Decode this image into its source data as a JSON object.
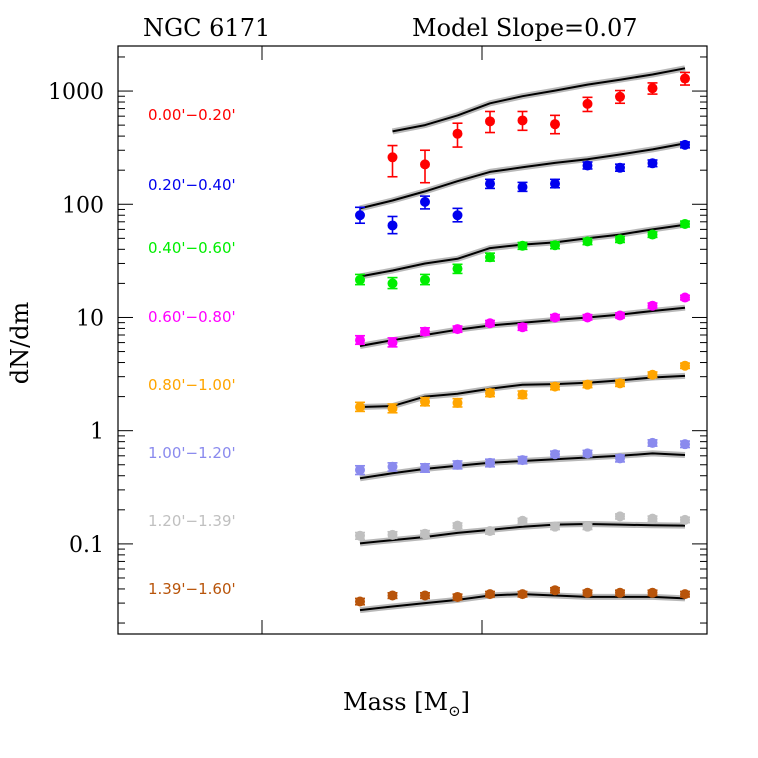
{
  "chart_data": {
    "type": "scatter",
    "title_left": "NGC 6171",
    "title_right": "Model Slope=0.07",
    "xlabel": "Mass [M",
    "xlabel_sub": "⊙",
    "xlabel_close": "]",
    "ylabel": "dN/dm",
    "y_scale": "log",
    "ylim": [
      0.016,
      2500
    ],
    "ytick_labels": [
      "0.1",
      "1",
      "10",
      "100",
      "1000"
    ],
    "ytick_values": [
      0.1,
      1,
      10,
      100,
      1000
    ],
    "x_bins": [
      1,
      2,
      3,
      4,
      5,
      6,
      7,
      8,
      9,
      10,
      11,
      12
    ],
    "grid": false,
    "series": [
      {
        "name": "0.00'−0.20'",
        "color": "#ff0000",
        "points": [
          {
            "x": 2,
            "y": 260,
            "err": [
              175,
              330
            ]
          },
          {
            "x": 3,
            "y": 225,
            "err": [
              155,
              300
            ]
          },
          {
            "x": 4,
            "y": 420,
            "err": [
              320,
              520
            ]
          },
          {
            "x": 5,
            "y": 540,
            "err": [
              430,
              660
            ]
          },
          {
            "x": 6,
            "y": 550,
            "err": [
              450,
              660
            ]
          },
          {
            "x": 7,
            "y": 510,
            "err": [
              420,
              610
            ]
          },
          {
            "x": 8,
            "y": 770,
            "err": [
              660,
              880
            ]
          },
          {
            "x": 9,
            "y": 890,
            "err": [
              780,
              1010
            ]
          },
          {
            "x": 10,
            "y": 1060,
            "err": [
              940,
              1180
            ]
          },
          {
            "x": 11,
            "y": 1290,
            "err": [
              1130,
              1460
            ]
          }
        ],
        "model": [
          [
            2,
            440
          ],
          [
            3,
            500
          ],
          [
            4,
            610
          ],
          [
            5,
            780
          ],
          [
            6,
            900
          ],
          [
            7,
            1010
          ],
          [
            8,
            1140
          ],
          [
            9,
            1260
          ],
          [
            10,
            1400
          ],
          [
            11,
            1590
          ]
        ]
      },
      {
        "name": "0.20'−0.40'",
        "color": "#0000ee",
        "points": [
          {
            "x": 1,
            "y": 80,
            "err": [
              68,
              94
            ]
          },
          {
            "x": 2,
            "y": 65,
            "err": [
              55,
              78
            ]
          },
          {
            "x": 3,
            "y": 105,
            "err": [
              91,
              118
            ]
          },
          {
            "x": 4,
            "y": 80,
            "err": [
              70,
              92
            ]
          },
          {
            "x": 5,
            "y": 152,
            "err": [
              138,
              166
            ]
          },
          {
            "x": 6,
            "y": 142,
            "err": [
              130,
              156
            ]
          },
          {
            "x": 7,
            "y": 152,
            "err": [
              140,
              166
            ]
          },
          {
            "x": 8,
            "y": 220,
            "err": [
              205,
              236
            ]
          },
          {
            "x": 9,
            "y": 210,
            "err": [
              196,
              226
            ]
          },
          {
            "x": 10,
            "y": 230,
            "err": [
              215,
              246
            ]
          },
          {
            "x": 11,
            "y": 335,
            "err": [
              315,
              355
            ]
          }
        ],
        "model": [
          [
            1,
            92
          ],
          [
            2,
            108
          ],
          [
            3,
            130
          ],
          [
            4,
            160
          ],
          [
            5,
            193
          ],
          [
            6,
            212
          ],
          [
            7,
            232
          ],
          [
            8,
            250
          ],
          [
            9,
            275
          ],
          [
            10,
            305
          ],
          [
            11,
            345
          ]
        ]
      },
      {
        "name": "0.40'−0.60'",
        "color": "#00ee00",
        "points": [
          {
            "x": 1,
            "y": 21.5,
            "err": [
              19.5,
              24
            ]
          },
          {
            "x": 2,
            "y": 20,
            "err": [
              18,
              22.5
            ]
          },
          {
            "x": 3,
            "y": 21.5,
            "err": [
              19.5,
              24
            ]
          },
          {
            "x": 4,
            "y": 27,
            "err": [
              24.5,
              29.5
            ]
          },
          {
            "x": 5,
            "y": 34,
            "err": [
              31.5,
              37
            ]
          },
          {
            "x": 6,
            "y": 43,
            "err": [
              40,
              46
            ]
          },
          {
            "x": 7,
            "y": 43.5,
            "err": [
              40.5,
              46.5
            ]
          },
          {
            "x": 8,
            "y": 47,
            "err": [
              44,
              50
            ]
          },
          {
            "x": 9,
            "y": 49,
            "err": [
              46,
              52
            ]
          },
          {
            "x": 10,
            "y": 54,
            "err": [
              51,
              57
            ]
          },
          {
            "x": 11,
            "y": 67,
            "err": [
              63,
              71
            ]
          }
        ],
        "model": [
          [
            1,
            23
          ],
          [
            2,
            26
          ],
          [
            3,
            30
          ],
          [
            4,
            33
          ],
          [
            5,
            41
          ],
          [
            6,
            44
          ],
          [
            7,
            46
          ],
          [
            8,
            50
          ],
          [
            9,
            54
          ],
          [
            10,
            60
          ],
          [
            11,
            66
          ]
        ]
      },
      {
        "name": "0.60'−0.80'",
        "color": "#ff00ff",
        "points": [
          {
            "x": 1,
            "y": 6.3,
            "err": [
              5.8,
              6.9
            ]
          },
          {
            "x": 2,
            "y": 6.0,
            "err": [
              5.5,
              6.6
            ]
          },
          {
            "x": 3,
            "y": 7.5,
            "err": [
              7.0,
              8.1
            ]
          },
          {
            "x": 4,
            "y": 7.9,
            "err": [
              7.4,
              8.4
            ]
          },
          {
            "x": 5,
            "y": 8.9,
            "err": [
              8.4,
              9.4
            ]
          },
          {
            "x": 6,
            "y": 8.2,
            "err": [
              7.7,
              8.8
            ]
          },
          {
            "x": 7,
            "y": 10,
            "err": [
              9.5,
              10.6
            ]
          },
          {
            "x": 8,
            "y": 10,
            "err": [
              9.5,
              10.6
            ]
          },
          {
            "x": 9,
            "y": 10.4,
            "err": [
              9.9,
              11
            ]
          },
          {
            "x": 10,
            "y": 12.7,
            "err": [
              12.1,
              13.4
            ]
          },
          {
            "x": 11,
            "y": 15,
            "err": [
              14.3,
              15.7
            ]
          }
        ],
        "model": [
          [
            1,
            5.6
          ],
          [
            2,
            6.3
          ],
          [
            3,
            7.0
          ],
          [
            4,
            7.8
          ],
          [
            5,
            8.5
          ],
          [
            6,
            9.0
          ],
          [
            7,
            9.5
          ],
          [
            8,
            10
          ],
          [
            9,
            10.6
          ],
          [
            10,
            11.4
          ],
          [
            11,
            12.2
          ]
        ]
      },
      {
        "name": "0.80'−1.00'",
        "color": "#ffa500",
        "points": [
          {
            "x": 1,
            "y": 1.62,
            "err": [
              1.48,
              1.78
            ]
          },
          {
            "x": 2,
            "y": 1.57,
            "err": [
              1.44,
              1.72
            ]
          },
          {
            "x": 3,
            "y": 1.8,
            "err": [
              1.66,
              1.96
            ]
          },
          {
            "x": 4,
            "y": 1.76,
            "err": [
              1.62,
              1.92
            ]
          },
          {
            "x": 5,
            "y": 2.15,
            "err": [
              2.0,
              2.32
            ]
          },
          {
            "x": 6,
            "y": 2.08,
            "err": [
              1.93,
              2.24
            ]
          },
          {
            "x": 7,
            "y": 2.45,
            "err": [
              2.3,
              2.62
            ]
          },
          {
            "x": 8,
            "y": 2.55,
            "err": [
              2.4,
              2.72
            ]
          },
          {
            "x": 9,
            "y": 2.62,
            "err": [
              2.46,
              2.8
            ]
          },
          {
            "x": 10,
            "y": 3.12,
            "err": [
              2.95,
              3.3
            ]
          },
          {
            "x": 11,
            "y": 3.75,
            "err": [
              3.55,
              3.95
            ]
          }
        ],
        "model": [
          [
            1,
            1.62
          ],
          [
            2,
            1.65
          ],
          [
            3,
            2.0
          ],
          [
            4,
            2.12
          ],
          [
            5,
            2.35
          ],
          [
            6,
            2.55
          ],
          [
            7,
            2.58
          ],
          [
            8,
            2.65
          ],
          [
            9,
            2.78
          ],
          [
            10,
            2.95
          ],
          [
            11,
            3.05
          ]
        ]
      },
      {
        "name": "1.00'−1.20'",
        "color": "#8a8aee",
        "points": [
          {
            "x": 1,
            "y": 0.45,
            "err": [
              0.41,
              0.49
            ]
          },
          {
            "x": 2,
            "y": 0.48,
            "err": [
              0.44,
              0.52
            ]
          },
          {
            "x": 3,
            "y": 0.47,
            "err": [
              0.43,
              0.51
            ]
          },
          {
            "x": 4,
            "y": 0.5,
            "err": [
              0.46,
              0.54
            ]
          },
          {
            "x": 5,
            "y": 0.52,
            "err": [
              0.48,
              0.56
            ]
          },
          {
            "x": 6,
            "y": 0.55,
            "err": [
              0.51,
              0.59
            ]
          },
          {
            "x": 7,
            "y": 0.62,
            "err": [
              0.58,
              0.66
            ]
          },
          {
            "x": 8,
            "y": 0.63,
            "err": [
              0.59,
              0.67
            ]
          },
          {
            "x": 9,
            "y": 0.57,
            "err": [
              0.53,
              0.61
            ]
          },
          {
            "x": 10,
            "y": 0.78,
            "err": [
              0.73,
              0.83
            ]
          },
          {
            "x": 11,
            "y": 0.76,
            "err": [
              0.71,
              0.81
            ]
          }
        ],
        "model": [
          [
            1,
            0.38
          ],
          [
            2,
            0.42
          ],
          [
            3,
            0.46
          ],
          [
            4,
            0.49
          ],
          [
            5,
            0.52
          ],
          [
            6,
            0.54
          ],
          [
            7,
            0.56
          ],
          [
            8,
            0.58
          ],
          [
            9,
            0.6
          ],
          [
            10,
            0.63
          ],
          [
            11,
            0.61
          ]
        ]
      },
      {
        "name": "1.20'−1.39'",
        "color": "#c0c0c0",
        "points": [
          {
            "x": 1,
            "y": 0.118,
            "err": [
              0.11,
              0.126
            ]
          },
          {
            "x": 2,
            "y": 0.12,
            "err": [
              0.112,
              0.128
            ]
          },
          {
            "x": 3,
            "y": 0.123,
            "err": [
              0.115,
              0.131
            ]
          },
          {
            "x": 4,
            "y": 0.145,
            "err": [
              0.137,
              0.153
            ]
          },
          {
            "x": 5,
            "y": 0.13,
            "err": [
              0.122,
              0.138
            ]
          },
          {
            "x": 6,
            "y": 0.16,
            "err": [
              0.152,
              0.168
            ]
          },
          {
            "x": 7,
            "y": 0.142,
            "err": [
              0.134,
              0.15
            ]
          },
          {
            "x": 8,
            "y": 0.142,
            "err": [
              0.134,
              0.15
            ]
          },
          {
            "x": 9,
            "y": 0.175,
            "err": [
              0.166,
              0.184
            ]
          },
          {
            "x": 10,
            "y": 0.167,
            "err": [
              0.158,
              0.176
            ]
          },
          {
            "x": 11,
            "y": 0.163,
            "err": [
              0.154,
              0.172
            ]
          }
        ],
        "model": [
          [
            1,
            0.101
          ],
          [
            2,
            0.108
          ],
          [
            3,
            0.115
          ],
          [
            4,
            0.125
          ],
          [
            5,
            0.133
          ],
          [
            6,
            0.142
          ],
          [
            7,
            0.148
          ],
          [
            8,
            0.15
          ],
          [
            9,
            0.148
          ],
          [
            10,
            0.146
          ],
          [
            11,
            0.145
          ]
        ]
      },
      {
        "name": "1.39'−1.60'",
        "color": "#b8540a",
        "points": [
          {
            "x": 1,
            "y": 0.031,
            "err": [
              0.029,
              0.033
            ]
          },
          {
            "x": 2,
            "y": 0.035,
            "err": [
              0.033,
              0.037
            ]
          },
          {
            "x": 3,
            "y": 0.035,
            "err": [
              0.033,
              0.037
            ]
          },
          {
            "x": 4,
            "y": 0.034,
            "err": [
              0.032,
              0.036
            ]
          },
          {
            "x": 5,
            "y": 0.036,
            "err": [
              0.034,
              0.038
            ]
          },
          {
            "x": 6,
            "y": 0.036,
            "err": [
              0.034,
              0.038
            ]
          },
          {
            "x": 7,
            "y": 0.039,
            "err": [
              0.037,
              0.041
            ]
          },
          {
            "x": 8,
            "y": 0.037,
            "err": [
              0.035,
              0.039
            ]
          },
          {
            "x": 9,
            "y": 0.037,
            "err": [
              0.035,
              0.039
            ]
          },
          {
            "x": 10,
            "y": 0.037,
            "err": [
              0.035,
              0.039
            ]
          },
          {
            "x": 11,
            "y": 0.036,
            "err": [
              0.034,
              0.038
            ]
          }
        ],
        "model": [
          [
            1,
            0.026
          ],
          [
            2,
            0.028
          ],
          [
            3,
            0.03
          ],
          [
            4,
            0.032
          ],
          [
            5,
            0.035
          ],
          [
            6,
            0.036
          ],
          [
            7,
            0.035
          ],
          [
            8,
            0.034
          ],
          [
            9,
            0.034
          ],
          [
            10,
            0.034
          ],
          [
            11,
            0.033
          ]
        ]
      }
    ]
  }
}
